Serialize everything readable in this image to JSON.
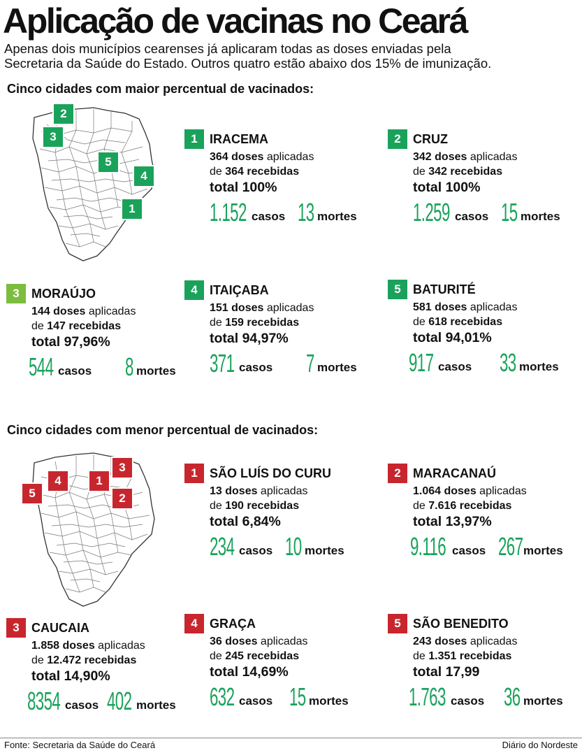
{
  "title": "Aplicação de vacinas no Ceará",
  "subtitle": [
    "Apenas dois municípios cearenses já aplicaram todas as doses enviadas pela",
    "Secretaria da Saúde do Estado. Outros quatro estão abaixo dos 15% de imunização."
  ],
  "colors": {
    "green": "#1aa25b",
    "light_green": "#7cbd3e",
    "red": "#c8262e"
  },
  "top": {
    "heading": "Cinco cidades com maior percentual de vacinados:",
    "cities": [
      {
        "rank": "1",
        "name": "IRACEMA",
        "applied": "364 doses",
        "applied_suffix": " aplicadas",
        "received_prefix": "de ",
        "received": "364 recebidas",
        "total": "total 100%",
        "cases": "1.152",
        "cases_label": "casos",
        "deaths": "13",
        "deaths_label": "mortes",
        "color": "#1aa25b"
      },
      {
        "rank": "2",
        "name": "CRUZ",
        "applied": "342 doses",
        "applied_suffix": " aplicadas",
        "received_prefix": "de ",
        "received": "342 recebidas",
        "total": "total 100%",
        "cases": "1.259",
        "cases_label": "casos",
        "deaths": "15",
        "deaths_label": "mortes",
        "color": "#1aa25b"
      },
      {
        "rank": "3",
        "name": "MORAÚJO",
        "applied": "144 doses",
        "applied_suffix": " aplicadas",
        "received_prefix": "de ",
        "received": "147 recebidas",
        "total": "total 97,96%",
        "cases": "544",
        "cases_label": "casos",
        "deaths": "8",
        "deaths_label": "mortes",
        "color": "#7cbd3e"
      },
      {
        "rank": "4",
        "name": "ITAIÇABA",
        "applied": "151 doses",
        "applied_suffix": " aplicadas",
        "received_prefix": "de ",
        "received": "159 recebidas",
        "total": "total 94,97%",
        "cases": "371",
        "cases_label": "casos",
        "deaths": "7",
        "deaths_label": "mortes",
        "color": "#1aa25b"
      },
      {
        "rank": "5",
        "name": "BATURITÉ",
        "applied": "581 doses",
        "applied_suffix": " aplicadas",
        "received_prefix": "de ",
        "received": "618 recebidas",
        "total": "total 94,01%",
        "cases": "917",
        "cases_label": "casos",
        "deaths": "33",
        "deaths_label": "mortes",
        "color": "#1aa25b"
      }
    ],
    "map_markers": [
      "2",
      "3",
      "5",
      "4",
      "1"
    ]
  },
  "bottom": {
    "heading": "Cinco cidades com menor percentual de vacinados:",
    "cities": [
      {
        "rank": "1",
        "name": "SÃO LUÍS DO CURU",
        "applied": "13 doses",
        "applied_suffix": " aplicadas",
        "received_prefix": "de ",
        "received": "190 recebidas",
        "total": "total 6,84%",
        "cases": "234",
        "cases_label": "casos",
        "deaths": "10",
        "deaths_label": "mortes",
        "color": "#c8262e"
      },
      {
        "rank": "2",
        "name": "MARACANAÚ",
        "applied": "1.064 doses",
        "applied_suffix": " aplicadas",
        "received_prefix": "de ",
        "received": "7.616 recebidas",
        "total": "total 13,97%",
        "cases": "9.116",
        "cases_label": "casos",
        "deaths": "267",
        "deaths_label": "mortes",
        "color": "#c8262e"
      },
      {
        "rank": "3",
        "name": "CAUCAIA",
        "applied": "1.858 doses",
        "applied_suffix": " aplicadas",
        "received_prefix": "de ",
        "received": "12.472  recebidas",
        "total": "total 14,90%",
        "cases": "8354",
        "cases_label": "casos",
        "deaths": "402",
        "deaths_label": "mortes",
        "color": "#c8262e"
      },
      {
        "rank": "4",
        "name": "GRAÇA",
        "applied": "36 doses",
        "applied_suffix": " aplicadas",
        "received_prefix": "de ",
        "received": "245 recebidas",
        "total": "total 14,69%",
        "cases": "632",
        "cases_label": "casos",
        "deaths": "15",
        "deaths_label": "mortes",
        "color": "#c8262e"
      },
      {
        "rank": "5",
        "name": "SÃO BENEDITO",
        "applied": "243 doses",
        "applied_suffix": " aplicadas",
        "received_prefix": "de ",
        "received": "1.351  recebidas",
        "total": "total 17,99",
        "cases": "1.763",
        "cases_label": "casos",
        "deaths": "36",
        "deaths_label": "mortes",
        "color": "#c8262e"
      }
    ],
    "map_markers": [
      "3",
      "4",
      "1",
      "5",
      "2"
    ]
  },
  "footer": {
    "source": "Fonte: Secretaria da Saúde do Ceará",
    "credit": "Diário do Nordeste"
  }
}
